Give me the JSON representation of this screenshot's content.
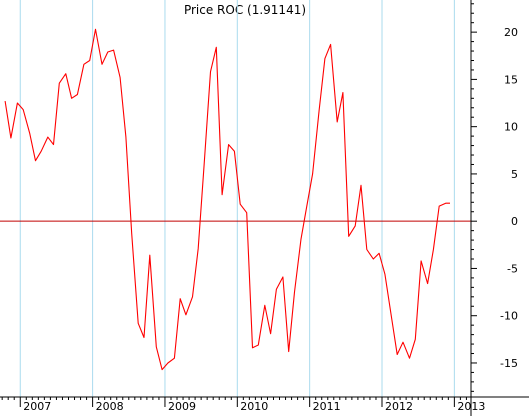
{
  "chart_data": {
    "type": "line",
    "title": "Price ROC (1.91141)",
    "xlabel": "",
    "ylabel": "",
    "ylim": [
      -18.6,
      23.4
    ],
    "xlim": [
      2006.72,
      2013.23
    ],
    "grid": true,
    "legend": "none",
    "x_ticks": [
      {
        "label": "2007",
        "x": 2007
      },
      {
        "label": "2008",
        "x": 2008
      },
      {
        "label": "2009",
        "x": 2009
      },
      {
        "label": "2010",
        "x": 2010
      },
      {
        "label": "2011",
        "x": 2011
      },
      {
        "label": "2012",
        "x": 2012
      },
      {
        "label": "2013",
        "x": 2013
      }
    ],
    "y_ticks": [
      {
        "label": "20",
        "y": 20
      },
      {
        "label": "15",
        "y": 15
      },
      {
        "label": "10",
        "y": 10
      },
      {
        "label": "5",
        "y": 5
      },
      {
        "label": "0",
        "y": 0
      },
      {
        "label": "-5",
        "y": -5
      },
      {
        "label": "-10",
        "y": -10
      },
      {
        "label": "-15",
        "y": -15
      }
    ],
    "reference_line": 0,
    "series": [
      {
        "x": [
          2006.79,
          2006.87,
          2006.96,
          2007.04,
          2007.13,
          2007.21,
          2007.29,
          2007.38,
          2007.46,
          2007.54,
          2007.63,
          2007.71,
          2007.79,
          2007.88,
          2007.96,
          2008.04,
          2008.13,
          2008.21,
          2008.29,
          2008.38,
          2008.46,
          2008.54,
          2008.63,
          2008.71,
          2008.79,
          2008.88,
          2008.96,
          2009.04,
          2009.13,
          2009.21,
          2009.29,
          2009.38,
          2009.46,
          2009.54,
          2009.63,
          2009.71,
          2009.79,
          2009.88,
          2009.96,
          2010.04,
          2010.13,
          2010.21,
          2010.29,
          2010.38,
          2010.46,
          2010.54,
          2010.63,
          2010.71,
          2010.79,
          2010.88,
          2010.96,
          2011.04,
          2011.13,
          2011.21,
          2011.29,
          2011.38,
          2011.46,
          2011.54,
          2011.63,
          2011.71,
          2011.79,
          2011.88,
          2011.96,
          2012.04,
          2012.13,
          2012.21,
          2012.29,
          2012.38,
          2012.46,
          2012.54,
          2012.63,
          2012.71,
          2012.79,
          2012.88,
          2012.94
        ],
        "y": [
          12.7,
          8.8,
          12.5,
          11.8,
          9.3,
          6.4,
          7.4,
          8.9,
          8.1,
          14.6,
          15.6,
          13.0,
          13.4,
          16.6,
          17.0,
          20.3,
          16.6,
          17.9,
          18.1,
          15.2,
          8.9,
          -1.3,
          -10.8,
          -12.3,
          -3.6,
          -13.3,
          -15.7,
          -15.0,
          -14.5,
          -8.2,
          -9.9,
          -8.0,
          -2.9,
          5.8,
          15.8,
          18.4,
          2.8,
          8.1,
          7.4,
          1.8,
          0.9,
          -13.4,
          -13.1,
          -8.9,
          -11.9,
          -7.2,
          -5.9,
          -13.8,
          -7.5,
          -1.9,
          1.6,
          5.0,
          11.7,
          17.2,
          18.7,
          10.5,
          13.6,
          -1.6,
          -0.5,
          3.8,
          -3.0,
          -4.0,
          -3.4,
          -5.6,
          -10.1,
          -14.1,
          -12.8,
          -14.5,
          -12.5,
          -4.2,
          -6.6,
          -3.0,
          1.6,
          1.9,
          1.9
        ]
      }
    ],
    "colors": {
      "line": "#ff0000",
      "zero_line": "#c00000",
      "grid": "#aadbee",
      "axis": "#000000",
      "background": "#ffffff"
    }
  }
}
